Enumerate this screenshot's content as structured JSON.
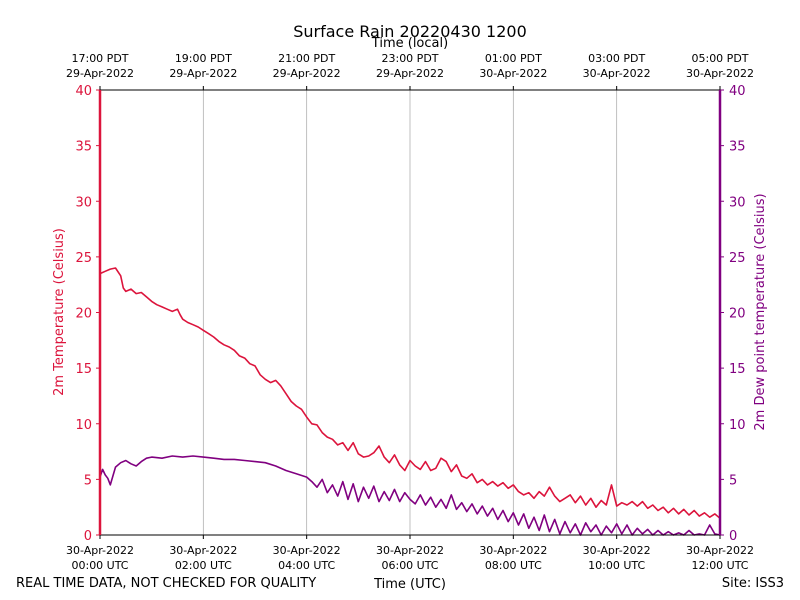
{
  "chart_data": {
    "type": "line",
    "title": "Surface Rain 20220430 1200",
    "top_xlabel": "Time (local)",
    "xlabel": "Time (UTC)",
    "ylabel_left": "2m Temperature (Celsius)",
    "ylabel_right": "2m Dew point temperature (Celsius)",
    "footer_left": "REAL TIME DATA, NOT CHECKED FOR QUALITY",
    "footer_right": "Site: ISS3",
    "x_range_hours": [
      0,
      12
    ],
    "ylim": [
      0,
      40
    ],
    "yticks": [
      0,
      5,
      10,
      15,
      20,
      25,
      30,
      35,
      40
    ],
    "grid": "vertical",
    "bottom_ticks": [
      {
        "hour": 0,
        "line1": "30-Apr-2022",
        "line2": "00:00 UTC"
      },
      {
        "hour": 2,
        "line1": "30-Apr-2022",
        "line2": "02:00 UTC"
      },
      {
        "hour": 4,
        "line1": "30-Apr-2022",
        "line2": "04:00 UTC"
      },
      {
        "hour": 6,
        "line1": "30-Apr-2022",
        "line2": "06:00 UTC"
      },
      {
        "hour": 8,
        "line1": "30-Apr-2022",
        "line2": "08:00 UTC"
      },
      {
        "hour": 10,
        "line1": "30-Apr-2022",
        "line2": "10:00 UTC"
      },
      {
        "hour": 12,
        "line1": "30-Apr-2022",
        "line2": "12:00 UTC"
      }
    ],
    "top_ticks": [
      {
        "hour": 0,
        "line1": "17:00 PDT",
        "line2": "29-Apr-2022"
      },
      {
        "hour": 2,
        "line1": "19:00 PDT",
        "line2": "29-Apr-2022"
      },
      {
        "hour": 4,
        "line1": "21:00 PDT",
        "line2": "29-Apr-2022"
      },
      {
        "hour": 6,
        "line1": "23:00 PDT",
        "line2": "29-Apr-2022"
      },
      {
        "hour": 8,
        "line1": "01:00 PDT",
        "line2": "30-Apr-2022"
      },
      {
        "hour": 10,
        "line1": "03:00 PDT",
        "line2": "30-Apr-2022"
      },
      {
        "hour": 12,
        "line1": "05:00 PDT",
        "line2": "30-Apr-2022"
      }
    ],
    "colors": {
      "temperature": "#dc143c",
      "dewpoint": "#800080"
    },
    "series": [
      {
        "name": "2m Temperature",
        "axis": "left",
        "color": "#dc143c",
        "points": [
          [
            0,
            23.5
          ],
          [
            0.1,
            23.7
          ],
          [
            0.2,
            23.9
          ],
          [
            0.3,
            24.0
          ],
          [
            0.4,
            23.3
          ],
          [
            0.45,
            22.2
          ],
          [
            0.5,
            21.9
          ],
          [
            0.6,
            22.1
          ],
          [
            0.7,
            21.7
          ],
          [
            0.8,
            21.8
          ],
          [
            0.9,
            21.4
          ],
          [
            1.0,
            21.0
          ],
          [
            1.1,
            20.7
          ],
          [
            1.2,
            20.5
          ],
          [
            1.3,
            20.3
          ],
          [
            1.4,
            20.1
          ],
          [
            1.5,
            20.3
          ],
          [
            1.55,
            19.8
          ],
          [
            1.6,
            19.4
          ],
          [
            1.7,
            19.1
          ],
          [
            1.8,
            18.9
          ],
          [
            1.9,
            18.7
          ],
          [
            2.0,
            18.4
          ],
          [
            2.1,
            18.1
          ],
          [
            2.2,
            17.8
          ],
          [
            2.3,
            17.4
          ],
          [
            2.4,
            17.1
          ],
          [
            2.5,
            16.9
          ],
          [
            2.6,
            16.6
          ],
          [
            2.7,
            16.1
          ],
          [
            2.8,
            15.9
          ],
          [
            2.9,
            15.4
          ],
          [
            3.0,
            15.2
          ],
          [
            3.1,
            14.4
          ],
          [
            3.2,
            14.0
          ],
          [
            3.3,
            13.7
          ],
          [
            3.4,
            13.9
          ],
          [
            3.5,
            13.4
          ],
          [
            3.6,
            12.7
          ],
          [
            3.7,
            12.0
          ],
          [
            3.8,
            11.6
          ],
          [
            3.9,
            11.3
          ],
          [
            4.0,
            10.6
          ],
          [
            4.1,
            10.0
          ],
          [
            4.2,
            9.9
          ],
          [
            4.3,
            9.2
          ],
          [
            4.4,
            8.8
          ],
          [
            4.5,
            8.6
          ],
          [
            4.6,
            8.1
          ],
          [
            4.7,
            8.3
          ],
          [
            4.8,
            7.6
          ],
          [
            4.9,
            8.3
          ],
          [
            5.0,
            7.3
          ],
          [
            5.1,
            7.0
          ],
          [
            5.2,
            7.1
          ],
          [
            5.3,
            7.4
          ],
          [
            5.4,
            8.0
          ],
          [
            5.5,
            7.0
          ],
          [
            5.6,
            6.5
          ],
          [
            5.7,
            7.2
          ],
          [
            5.8,
            6.3
          ],
          [
            5.9,
            5.8
          ],
          [
            6.0,
            6.7
          ],
          [
            6.1,
            6.2
          ],
          [
            6.2,
            5.9
          ],
          [
            6.3,
            6.6
          ],
          [
            6.4,
            5.8
          ],
          [
            6.5,
            6.0
          ],
          [
            6.6,
            6.9
          ],
          [
            6.7,
            6.6
          ],
          [
            6.8,
            5.7
          ],
          [
            6.9,
            6.3
          ],
          [
            7.0,
            5.3
          ],
          [
            7.1,
            5.1
          ],
          [
            7.2,
            5.5
          ],
          [
            7.3,
            4.7
          ],
          [
            7.4,
            5.0
          ],
          [
            7.5,
            4.5
          ],
          [
            7.6,
            4.8
          ],
          [
            7.7,
            4.4
          ],
          [
            7.8,
            4.7
          ],
          [
            7.9,
            4.2
          ],
          [
            8.0,
            4.5
          ],
          [
            8.1,
            3.9
          ],
          [
            8.2,
            3.6
          ],
          [
            8.3,
            3.8
          ],
          [
            8.4,
            3.3
          ],
          [
            8.5,
            3.9
          ],
          [
            8.6,
            3.5
          ],
          [
            8.7,
            4.3
          ],
          [
            8.8,
            3.5
          ],
          [
            8.9,
            3.0
          ],
          [
            9.0,
            3.3
          ],
          [
            9.1,
            3.6
          ],
          [
            9.2,
            2.9
          ],
          [
            9.3,
            3.5
          ],
          [
            9.4,
            2.7
          ],
          [
            9.5,
            3.3
          ],
          [
            9.6,
            2.5
          ],
          [
            9.7,
            3.1
          ],
          [
            9.8,
            2.7
          ],
          [
            9.9,
            4.5
          ],
          [
            10.0,
            2.6
          ],
          [
            10.1,
            2.9
          ],
          [
            10.2,
            2.7
          ],
          [
            10.3,
            3.0
          ],
          [
            10.4,
            2.6
          ],
          [
            10.5,
            3.0
          ],
          [
            10.6,
            2.4
          ],
          [
            10.7,
            2.7
          ],
          [
            10.8,
            2.2
          ],
          [
            10.9,
            2.5
          ],
          [
            11.0,
            2.0
          ],
          [
            11.1,
            2.4
          ],
          [
            11.2,
            1.9
          ],
          [
            11.3,
            2.3
          ],
          [
            11.4,
            1.8
          ],
          [
            11.5,
            2.2
          ],
          [
            11.6,
            1.7
          ],
          [
            11.7,
            2.0
          ],
          [
            11.8,
            1.6
          ],
          [
            11.9,
            1.9
          ],
          [
            12.0,
            1.5
          ]
        ]
      },
      {
        "name": "2m Dew point temperature",
        "axis": "right",
        "color": "#800080",
        "points": [
          [
            0,
            5.2
          ],
          [
            0.05,
            5.9
          ],
          [
            0.1,
            5.4
          ],
          [
            0.15,
            5.1
          ],
          [
            0.2,
            4.5
          ],
          [
            0.25,
            5.3
          ],
          [
            0.3,
            6.1
          ],
          [
            0.4,
            6.5
          ],
          [
            0.5,
            6.7
          ],
          [
            0.6,
            6.4
          ],
          [
            0.7,
            6.2
          ],
          [
            0.8,
            6.6
          ],
          [
            0.9,
            6.9
          ],
          [
            1.0,
            7.0
          ],
          [
            1.2,
            6.9
          ],
          [
            1.4,
            7.1
          ],
          [
            1.6,
            7.0
          ],
          [
            1.8,
            7.1
          ],
          [
            2.0,
            7.0
          ],
          [
            2.2,
            6.9
          ],
          [
            2.4,
            6.8
          ],
          [
            2.6,
            6.8
          ],
          [
            2.8,
            6.7
          ],
          [
            3.0,
            6.6
          ],
          [
            3.2,
            6.5
          ],
          [
            3.4,
            6.2
          ],
          [
            3.6,
            5.8
          ],
          [
            3.8,
            5.5
          ],
          [
            4.0,
            5.2
          ],
          [
            4.1,
            4.8
          ],
          [
            4.2,
            4.3
          ],
          [
            4.3,
            5.0
          ],
          [
            4.4,
            3.8
          ],
          [
            4.5,
            4.5
          ],
          [
            4.6,
            3.5
          ],
          [
            4.7,
            4.8
          ],
          [
            4.8,
            3.2
          ],
          [
            4.9,
            4.6
          ],
          [
            5.0,
            3.0
          ],
          [
            5.1,
            4.3
          ],
          [
            5.2,
            3.3
          ],
          [
            5.3,
            4.4
          ],
          [
            5.4,
            3.0
          ],
          [
            5.5,
            3.9
          ],
          [
            5.6,
            3.1
          ],
          [
            5.7,
            4.1
          ],
          [
            5.8,
            3.0
          ],
          [
            5.9,
            3.8
          ],
          [
            6.0,
            3.2
          ],
          [
            6.1,
            2.8
          ],
          [
            6.2,
            3.6
          ],
          [
            6.3,
            2.7
          ],
          [
            6.4,
            3.4
          ],
          [
            6.5,
            2.5
          ],
          [
            6.6,
            3.2
          ],
          [
            6.7,
            2.4
          ],
          [
            6.8,
            3.6
          ],
          [
            6.9,
            2.3
          ],
          [
            7.0,
            2.9
          ],
          [
            7.1,
            2.1
          ],
          [
            7.2,
            2.8
          ],
          [
            7.3,
            1.9
          ],
          [
            7.4,
            2.6
          ],
          [
            7.5,
            1.7
          ],
          [
            7.6,
            2.4
          ],
          [
            7.7,
            1.4
          ],
          [
            7.8,
            2.2
          ],
          [
            7.9,
            1.2
          ],
          [
            8.0,
            2.0
          ],
          [
            8.1,
            0.9
          ],
          [
            8.2,
            1.9
          ],
          [
            8.3,
            0.6
          ],
          [
            8.4,
            1.6
          ],
          [
            8.5,
            0.4
          ],
          [
            8.6,
            1.8
          ],
          [
            8.7,
            0.3
          ],
          [
            8.8,
            1.4
          ],
          [
            8.9,
            0.1
          ],
          [
            9.0,
            1.2
          ],
          [
            9.1,
            0.2
          ],
          [
            9.2,
            1.0
          ],
          [
            9.3,
            0.0
          ],
          [
            9.4,
            1.1
          ],
          [
            9.5,
            0.3
          ],
          [
            9.6,
            0.9
          ],
          [
            9.7,
            0.0
          ],
          [
            9.8,
            0.8
          ],
          [
            9.9,
            0.2
          ],
          [
            10.0,
            1.0
          ],
          [
            10.1,
            0.1
          ],
          [
            10.2,
            0.9
          ],
          [
            10.3,
            0.0
          ],
          [
            10.4,
            0.6
          ],
          [
            10.5,
            0.1
          ],
          [
            10.6,
            0.5
          ],
          [
            10.7,
            0.0
          ],
          [
            10.8,
            0.4
          ],
          [
            10.9,
            0.0
          ],
          [
            11.0,
            0.3
          ],
          [
            11.1,
            0.0
          ],
          [
            11.2,
            0.2
          ],
          [
            11.3,
            0.0
          ],
          [
            11.4,
            0.4
          ],
          [
            11.5,
            0.0
          ],
          [
            11.6,
            0.1
          ],
          [
            11.7,
            0.0
          ],
          [
            11.8,
            0.9
          ],
          [
            11.9,
            0.1
          ],
          [
            12.0,
            0.0
          ]
        ]
      }
    ]
  }
}
